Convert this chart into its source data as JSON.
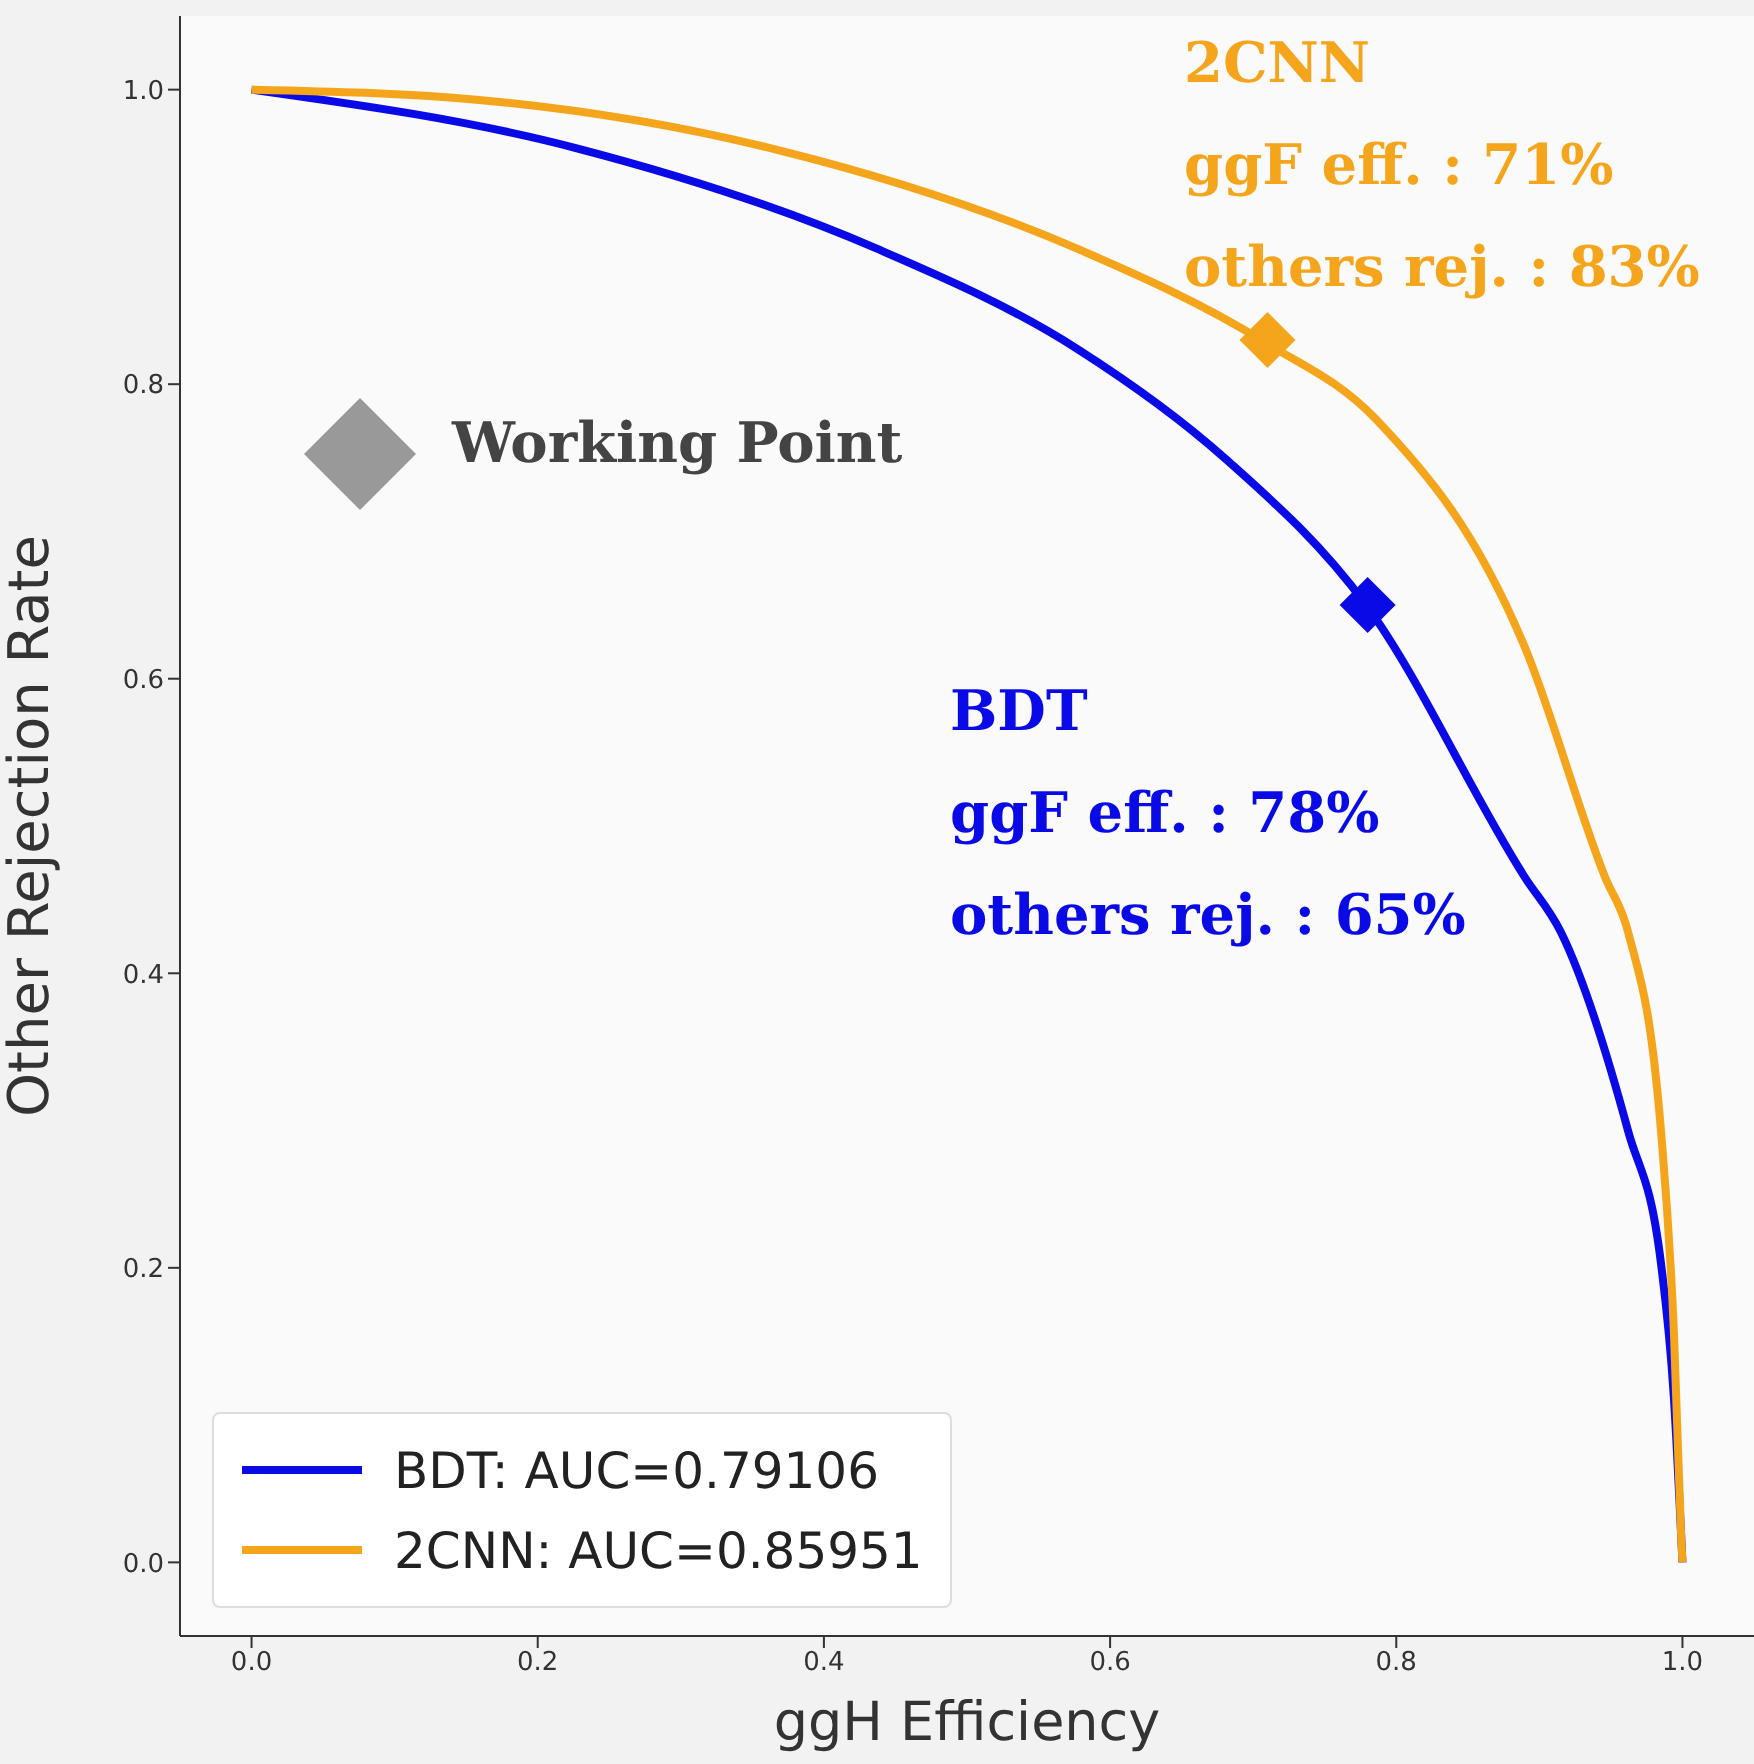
{
  "chart_data": {
    "type": "line",
    "xlabel": "ggH Efficiency",
    "ylabel": "Other Rejection Rate",
    "xlim": [
      -0.05,
      1.05
    ],
    "ylim": [
      -0.05,
      1.05
    ],
    "xticks": [
      {
        "value": 0,
        "label": "0.0"
      },
      0.2,
      0.4,
      0.6,
      0.8,
      {
        "value": 1,
        "label": "1.0"
      }
    ],
    "yticks": [
      {
        "value": 0,
        "label": "0.0"
      },
      0.2,
      0.4,
      0.6,
      0.8,
      {
        "value": 1,
        "label": "1.0"
      }
    ],
    "grid": false,
    "legend": "bottom left",
    "marker": "none",
    "line_style": "solid",
    "series": [
      {
        "name": "BDT: AUC=0.79106",
        "color": "#0a0ae6",
        "x": [
          0,
          0.228,
          0.437,
          0.577,
          0.681,
          0.779,
          0.89,
          0.915,
          0.962,
          0.985,
          0.994,
          1.0
        ],
        "values": [
          1.0,
          0.96,
          0.892,
          0.824,
          0.749,
          0.65,
          0.465,
          0.428,
          0.293,
          0.203,
          0.112,
          0.0
        ]
      },
      {
        "name": "2CNN: AUC=0.85951",
        "color": "#f5a51c",
        "x": [
          0,
          0.159,
          0.368,
          0.577,
          0.709,
          0.786,
          0.89,
          0.946,
          0.962,
          0.985,
          0.994,
          0.999,
          1.0
        ],
        "values": [
          1.0,
          0.993,
          0.959,
          0.892,
          0.828,
          0.776,
          0.621,
          0.465,
          0.428,
          0.293,
          0.157,
          0.02,
          0.0
        ]
      },
      {
        "type": "scatter",
        "marker": "diamond",
        "color": "#0a0ae6",
        "x": [
          0.78
        ],
        "values": [
          0.65
        ]
      },
      {
        "type": "scatter",
        "marker": "diamond",
        "color": "#f5a51c",
        "x": [
          0.71
        ],
        "values": [
          0.83
        ]
      }
    ],
    "annotations": [
      "2CNN",
      "ggF eff. : 71%",
      "others rej. : 83%",
      "Working Point",
      "BDT",
      "ggF eff. : 78%",
      "others rej. : 65%"
    ]
  }
}
